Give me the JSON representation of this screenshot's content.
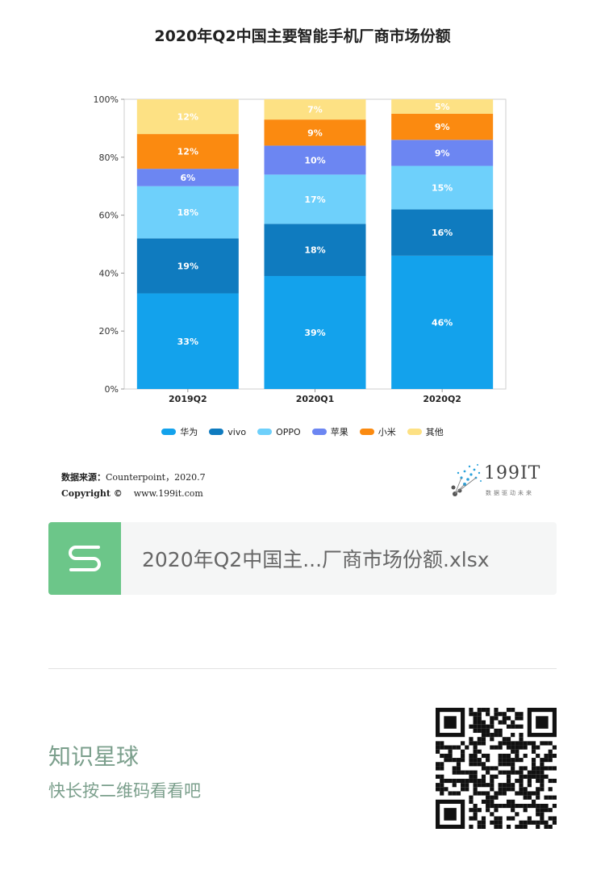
{
  "chart_data": {
    "type": "bar",
    "stacked": true,
    "title": "2020年Q2中国主要智能手机厂商市场份额",
    "categories": [
      "2019Q2",
      "2020Q1",
      "2020Q2"
    ],
    "series": [
      {
        "name": "华为",
        "color": "#13a2ec",
        "values": [
          33,
          39,
          46
        ]
      },
      {
        "name": "vivo",
        "color": "#0f7bbf",
        "values": [
          19,
          18,
          16
        ]
      },
      {
        "name": "OPPO",
        "color": "#6ed0fb",
        "values": [
          18,
          17,
          15
        ]
      },
      {
        "name": "苹果",
        "color": "#6c86f2",
        "values": [
          6,
          10,
          9
        ]
      },
      {
        "name": "小米",
        "color": "#fb8a10",
        "values": [
          12,
          9,
          9
        ]
      },
      {
        "name": "其他",
        "color": "#fde184",
        "values": [
          12,
          7,
          5
        ]
      }
    ],
    "data_labels": [
      [
        "33%",
        "39%",
        "46%"
      ],
      [
        "19%",
        "18%",
        "16%"
      ],
      [
        "18%",
        "17%",
        "15%"
      ],
      [
        "6%",
        "10%",
        "9%"
      ],
      [
        "12%",
        "9%",
        "9%"
      ],
      [
        "12%",
        "7%",
        "5%"
      ]
    ],
    "yticks": [
      "0%",
      "20%",
      "40%",
      "60%",
      "80%",
      "100%"
    ],
    "ylim": [
      0,
      100
    ],
    "legend_position": "bottom"
  },
  "source": {
    "label": "数据来源：",
    "value": "Counterpoint，2020.7",
    "copyright_label": "Copyright ©",
    "copyright_value": "www.199it.com"
  },
  "logo": {
    "name": "199IT",
    "tagline": "数据驱动未来"
  },
  "file": {
    "name": "2020年Q2中国主...厂商市场份额.xlsx",
    "icon": "spreadsheet-s-icon",
    "icon_color": "#6cc689"
  },
  "footer": {
    "title": "知识星球",
    "subtitle": "快长按二维码看看吧"
  }
}
